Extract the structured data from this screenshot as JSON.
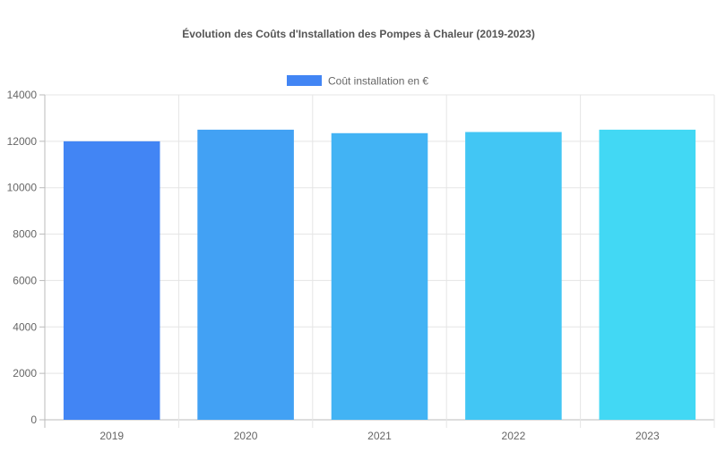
{
  "chart_data": {
    "type": "bar",
    "title": "Évolution des Coûts d'Installation des Pompes à Chaleur (2019-2023)",
    "xlabel": "",
    "ylabel": "",
    "categories": [
      "2019",
      "2020",
      "2021",
      "2022",
      "2023"
    ],
    "series": [
      {
        "name": "Coût installation en €",
        "values": [
          12000,
          12500,
          12350,
          12400,
          12500
        ],
        "colors": [
          "#4285F4",
          "#42A1F4",
          "#42B3F4",
          "#42C6F4",
          "#42D8F4"
        ]
      }
    ],
    "ylim": [
      0,
      14000
    ],
    "yticks": [
      0,
      2000,
      4000,
      6000,
      8000,
      10000,
      12000,
      14000
    ],
    "grid": true,
    "legend_position": "top"
  }
}
